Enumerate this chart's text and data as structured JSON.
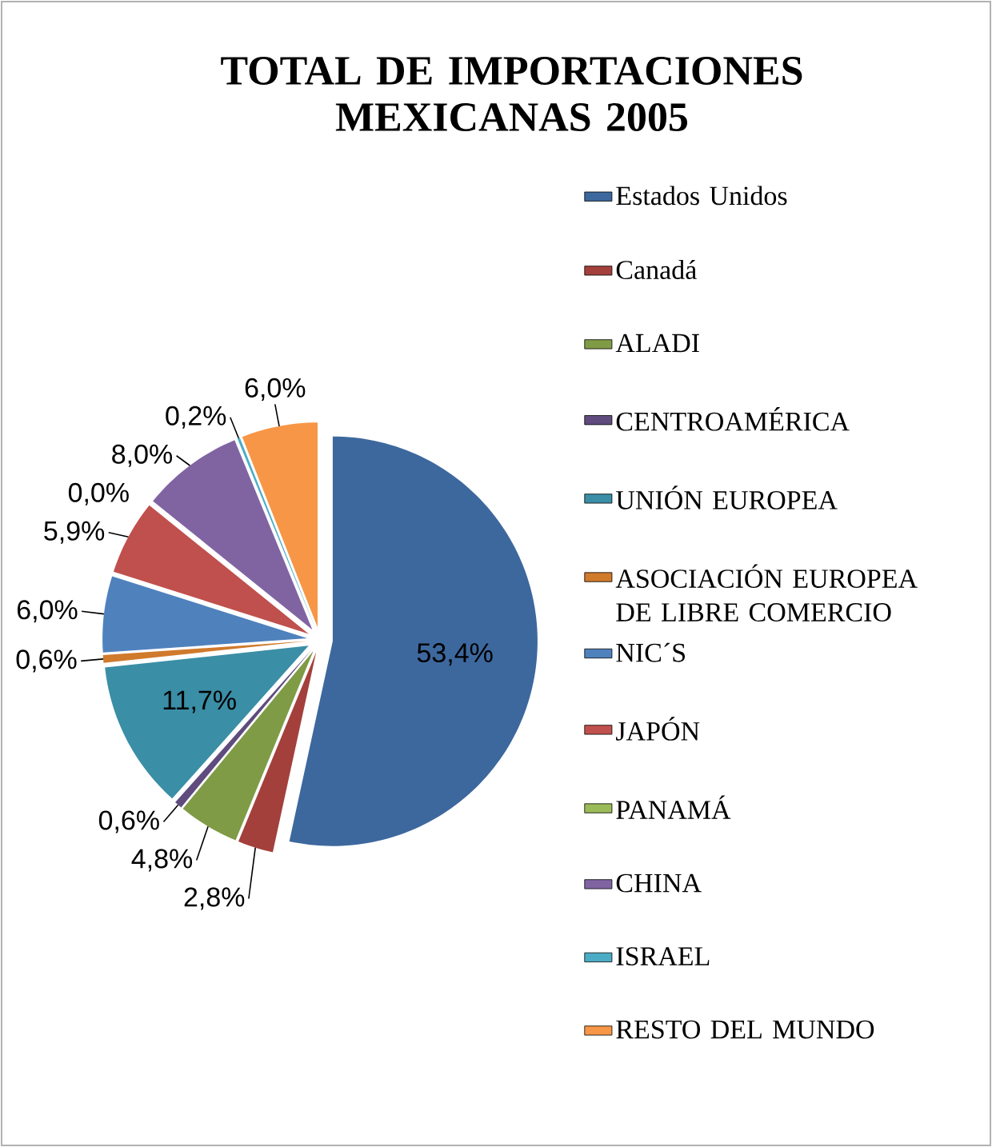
{
  "chart_data": {
    "type": "pie",
    "title": "TOTAL DE IMPORTACIONES MEXICANAS 2005",
    "categories": [
      "Estados Unidos",
      "Canadá",
      "ALADI",
      "CENTROAMÉRICA",
      "UNIÓN EUROPEA",
      "ASOCIACIÓN EUROPEA DE LIBRE COMERCIO",
      "NIC´S",
      "JAPÓN",
      "PANAMÁ",
      "CHINA",
      "ISRAEL",
      "RESTO DEL MUNDO"
    ],
    "values": [
      53.4,
      2.8,
      4.8,
      0.6,
      11.7,
      0.6,
      6.0,
      5.9,
      0.0,
      8.0,
      0.2,
      6.0
    ],
    "value_labels": [
      "53,4%",
      "2,8%",
      "4,8%",
      "0,6%",
      "11,7%",
      "0,6%",
      "6,0%",
      "5,9%",
      "0,0%",
      "8,0%",
      "0,2%",
      "6,0%"
    ],
    "colors": [
      "#3d689e",
      "#a3403c",
      "#7f9b46",
      "#5f4b7d",
      "#3a8ea6",
      "#d07a2c",
      "#4f81bd",
      "#c0504d",
      "#9bbb59",
      "#8064a2",
      "#4bacc6",
      "#f79646"
    ],
    "legend": "right"
  }
}
